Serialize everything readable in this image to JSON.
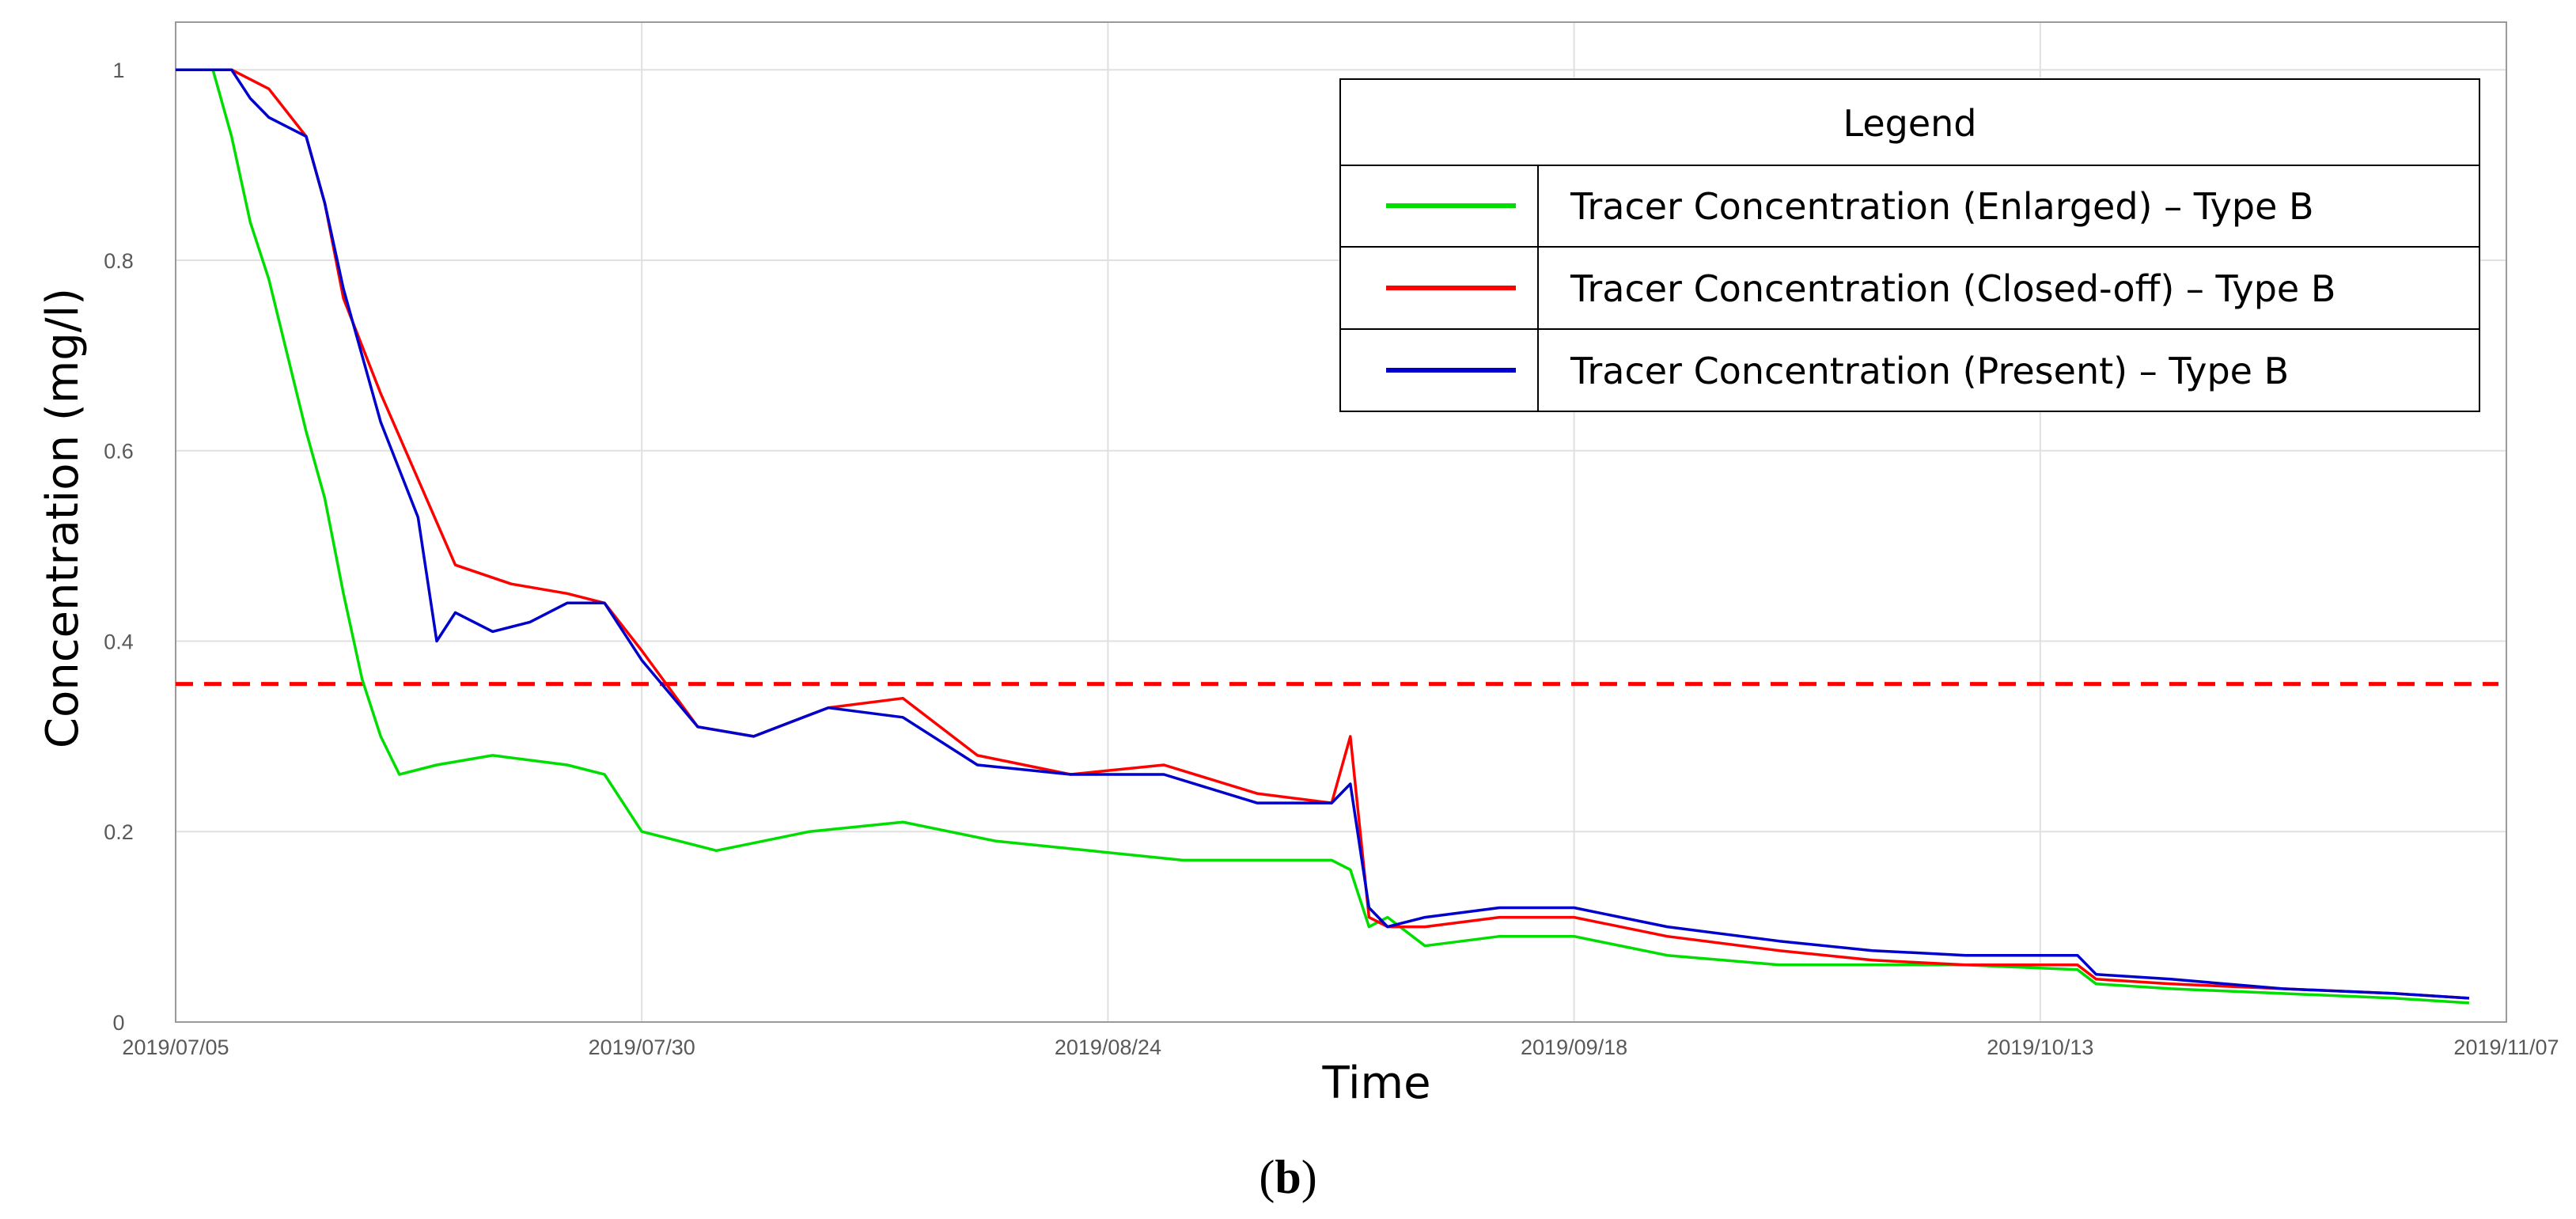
{
  "chart_data": {
    "type": "line",
    "title": "",
    "xlabel": "Time",
    "ylabel": "Concentration (mg/l)",
    "panel_label": "b",
    "x_ticks": [
      "2019/07/05",
      "2019/07/30",
      "2019/08/24",
      "2019/09/18",
      "2019/10/13",
      "2019/11/07"
    ],
    "y_ticks": [
      "0",
      "0.2",
      "0.4",
      "0.6",
      "0.8",
      "1"
    ],
    "xlim": [
      "2019/07/05",
      "2019/11/07"
    ],
    "ylim": [
      0,
      1.05
    ],
    "grid": true,
    "legend": {
      "title": "Legend",
      "position": "top-right",
      "entries": [
        {
          "label": "Tracer Concentration (Enlarged) – Type B",
          "color": "#00dd00"
        },
        {
          "label": "Tracer Concentration (Closed-off) – Type B",
          "color": "#ff0000"
        },
        {
          "label": "Tracer Concentration (Present) – Type B",
          "color": "#0000cc"
        }
      ]
    },
    "reference_line": {
      "y": 0.355,
      "style": "dashed",
      "color": "#ff0000"
    },
    "series": [
      {
        "name": "Tracer Concentration (Enlarged) – Type B",
        "color": "#00dd00",
        "x": [
          "2019/07/05",
          "2019/07/07",
          "2019/07/08",
          "2019/07/09",
          "2019/07/10",
          "2019/07/11",
          "2019/07/12",
          "2019/07/13",
          "2019/07/14",
          "2019/07/15",
          "2019/07/16",
          "2019/07/17",
          "2019/07/19",
          "2019/07/22",
          "2019/07/26",
          "2019/07/28",
          "2019/07/30",
          "2019/08/03",
          "2019/08/08",
          "2019/08/13",
          "2019/08/18",
          "2019/08/23",
          "2019/08/28",
          "2019/09/01",
          "2019/09/05",
          "2019/09/06",
          "2019/09/07",
          "2019/09/08",
          "2019/09/10",
          "2019/09/14",
          "2019/09/18",
          "2019/09/23",
          "2019/09/29",
          "2019/10/04",
          "2019/10/09",
          "2019/10/15",
          "2019/10/16",
          "2019/10/20",
          "2019/10/26",
          "2019/11/01",
          "2019/11/05"
        ],
        "y": [
          1.0,
          1.0,
          0.93,
          0.84,
          0.78,
          0.7,
          0.62,
          0.55,
          0.45,
          0.36,
          0.3,
          0.26,
          0.27,
          0.28,
          0.27,
          0.26,
          0.2,
          0.18,
          0.2,
          0.21,
          0.19,
          0.18,
          0.17,
          0.17,
          0.17,
          0.16,
          0.1,
          0.11,
          0.08,
          0.09,
          0.09,
          0.07,
          0.06,
          0.06,
          0.06,
          0.055,
          0.04,
          0.035,
          0.03,
          0.025,
          0.02
        ]
      },
      {
        "name": "Tracer Concentration (Closed-off) – Type B",
        "color": "#ff0000",
        "x": [
          "2019/07/05",
          "2019/07/08",
          "2019/07/10",
          "2019/07/12",
          "2019/07/13",
          "2019/07/14",
          "2019/07/16",
          "2019/07/18",
          "2019/07/20",
          "2019/07/23",
          "2019/07/26",
          "2019/07/28",
          "2019/07/30",
          "2019/08/02",
          "2019/08/05",
          "2019/08/09",
          "2019/08/13",
          "2019/08/17",
          "2019/08/22",
          "2019/08/27",
          "2019/09/01",
          "2019/09/05",
          "2019/09/06",
          "2019/09/07",
          "2019/09/08",
          "2019/09/10",
          "2019/09/14",
          "2019/09/18",
          "2019/09/23",
          "2019/09/29",
          "2019/10/04",
          "2019/10/09",
          "2019/10/15",
          "2019/10/16",
          "2019/10/20",
          "2019/10/26",
          "2019/11/01",
          "2019/11/05"
        ],
        "y": [
          1.0,
          1.0,
          0.98,
          0.93,
          0.86,
          0.76,
          0.66,
          0.57,
          0.48,
          0.46,
          0.45,
          0.44,
          0.39,
          0.31,
          0.3,
          0.33,
          0.34,
          0.28,
          0.26,
          0.27,
          0.24,
          0.23,
          0.3,
          0.11,
          0.1,
          0.1,
          0.11,
          0.11,
          0.09,
          0.075,
          0.065,
          0.06,
          0.06,
          0.045,
          0.04,
          0.035,
          0.03,
          0.025
        ]
      },
      {
        "name": "Tracer Concentration (Present) – Type B",
        "color": "#0000cc",
        "x": [
          "2019/07/05",
          "2019/07/08",
          "2019/07/09",
          "2019/07/10",
          "2019/07/12",
          "2019/07/13",
          "2019/07/14",
          "2019/07/16",
          "2019/07/18",
          "2019/07/19",
          "2019/07/20",
          "2019/07/22",
          "2019/07/24",
          "2019/07/26",
          "2019/07/28",
          "2019/07/30",
          "2019/08/02",
          "2019/08/05",
          "2019/08/09",
          "2019/08/13",
          "2019/08/17",
          "2019/08/22",
          "2019/08/27",
          "2019/09/01",
          "2019/09/05",
          "2019/09/06",
          "2019/09/07",
          "2019/09/08",
          "2019/09/10",
          "2019/09/14",
          "2019/09/18",
          "2019/09/23",
          "2019/09/29",
          "2019/10/04",
          "2019/10/09",
          "2019/10/15",
          "2019/10/16",
          "2019/10/20",
          "2019/10/26",
          "2019/11/01",
          "2019/11/05"
        ],
        "y": [
          1.0,
          1.0,
          0.97,
          0.95,
          0.93,
          0.86,
          0.77,
          0.63,
          0.53,
          0.4,
          0.43,
          0.41,
          0.42,
          0.44,
          0.44,
          0.38,
          0.31,
          0.3,
          0.33,
          0.32,
          0.27,
          0.26,
          0.26,
          0.23,
          0.23,
          0.25,
          0.12,
          0.1,
          0.11,
          0.12,
          0.12,
          0.1,
          0.085,
          0.075,
          0.07,
          0.07,
          0.05,
          0.045,
          0.035,
          0.03,
          0.025
        ]
      }
    ]
  }
}
